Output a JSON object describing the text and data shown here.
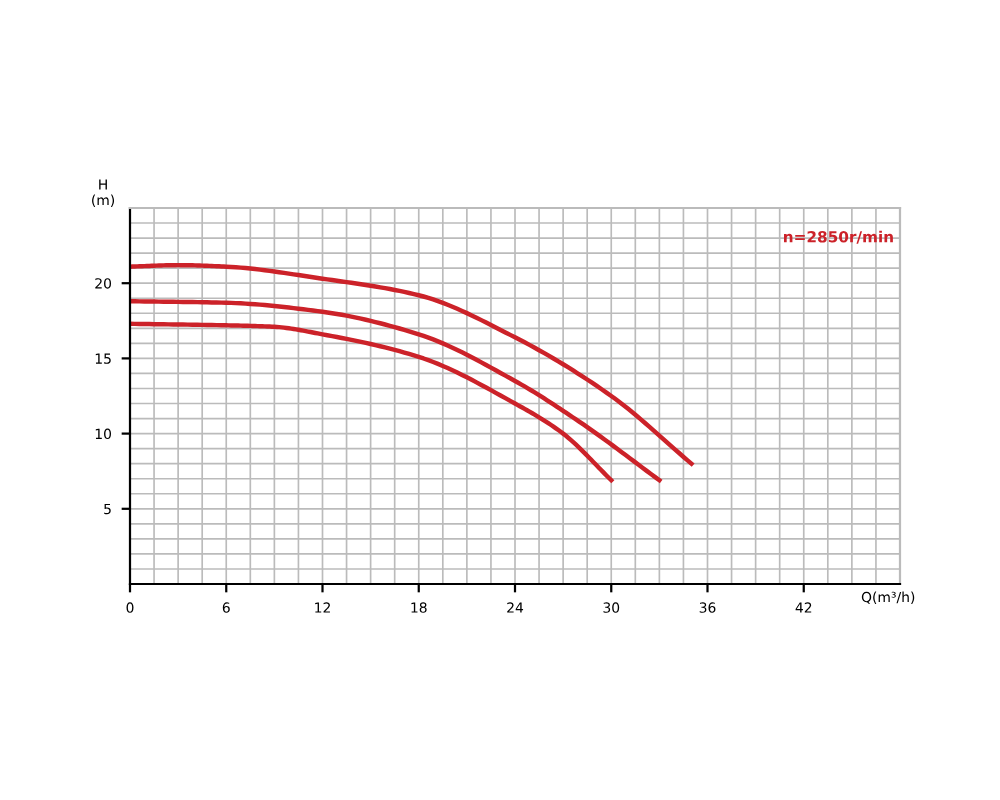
{
  "chart_data": {
    "type": "line",
    "xlabel": "Q(m³/h)",
    "ylabel": "H\n(m)",
    "xlim": [
      0,
      48
    ],
    "ylim": [
      0,
      25
    ],
    "xticks": [
      0,
      6,
      12,
      18,
      24,
      30,
      36,
      42
    ],
    "yticks": [
      5,
      10,
      15,
      20
    ],
    "grid": true,
    "marker": "none",
    "line_style": "solid",
    "annotations": [
      "n=2850r/min"
    ],
    "series": [
      {
        "color": "#cc2229",
        "x": [
          0,
          3,
          6,
          12,
          18,
          24,
          30,
          35
        ],
        "values": [
          21.1,
          21.2,
          21.1,
          20.3,
          19.2,
          16.4,
          12.5,
          8.0
        ]
      },
      {
        "color": "#cc2229",
        "x": [
          0,
          6,
          12,
          18,
          24,
          28,
          33
        ],
        "values": [
          18.8,
          18.7,
          18.1,
          16.6,
          13.5,
          10.8,
          6.9
        ]
      },
      {
        "color": "#cc2229",
        "x": [
          0,
          6,
          9,
          12,
          18,
          24,
          27,
          30
        ],
        "values": [
          17.3,
          17.2,
          17.1,
          16.6,
          15.1,
          12.0,
          10.0,
          6.9
        ]
      }
    ]
  }
}
